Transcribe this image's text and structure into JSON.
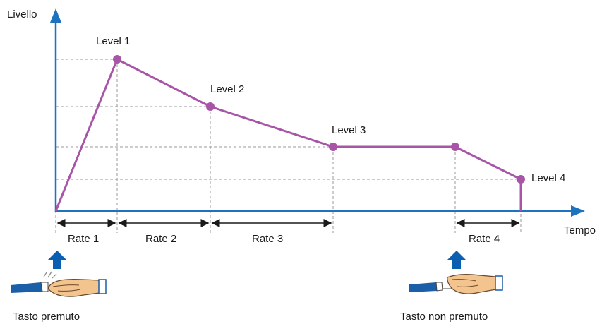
{
  "axes": {
    "y_label": "Livello",
    "x_label": "Tempo"
  },
  "levels": [
    "Level 1",
    "Level 2",
    "Level 3",
    "Level 4"
  ],
  "rates": [
    "Rate 1",
    "Rate 2",
    "Rate 3",
    "Rate 4"
  ],
  "captions": {
    "key_pressed": "Tasto premuto",
    "key_released": "Tasto non premuto"
  },
  "colors": {
    "envelope": "#a855a8",
    "axis": "#1e73be",
    "guides": "#999999",
    "arrow_up": "#0b5fb0"
  },
  "icons": [
    "finger-pressing-key-icon",
    "finger-releasing-key-icon",
    "up-arrow-icon"
  ]
}
